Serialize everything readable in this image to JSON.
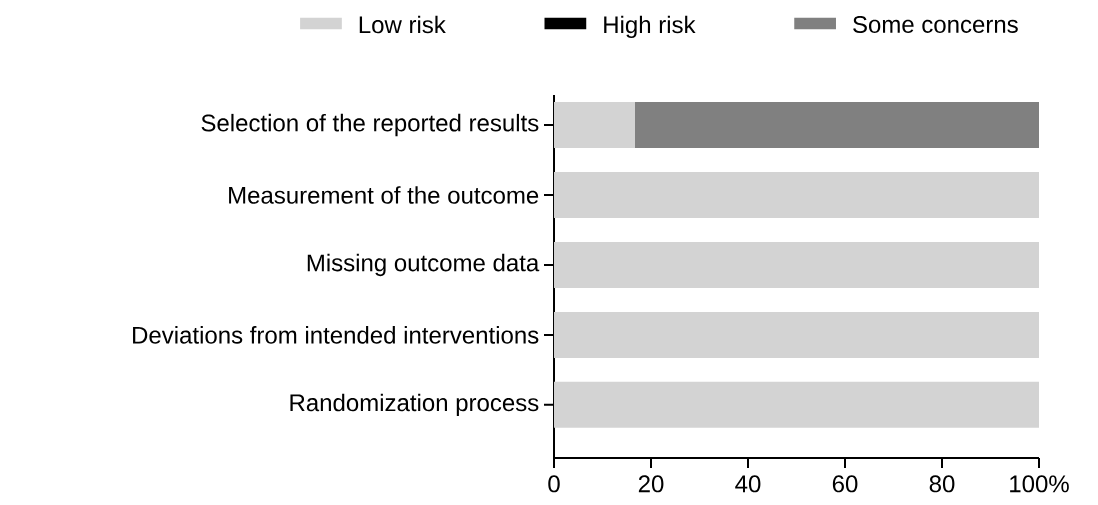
{
  "chart_data": {
    "type": "bar",
    "orientation": "horizontal",
    "stacked": true,
    "legend": "top",
    "categories": [
      "Selection of the reported results",
      "Measurement of the outcome",
      "Missing outcome data",
      "Deviations from intended interventions",
      "Randomization process"
    ],
    "series": [
      {
        "name": "Low risk",
        "color": "#d3d3d3",
        "values": [
          16.7,
          100,
          100,
          100,
          100
        ]
      },
      {
        "name": "High risk",
        "color": "#000000",
        "values": [
          0,
          0,
          0,
          0,
          0
        ]
      },
      {
        "name": "Some concerns",
        "color": "#808080",
        "values": [
          83.3,
          0,
          0,
          0,
          0
        ]
      }
    ],
    "xlim": [
      0,
      100
    ],
    "xticks": [
      0,
      20,
      40,
      60,
      80,
      {
        "value": 100,
        "label": "100%"
      }
    ]
  }
}
